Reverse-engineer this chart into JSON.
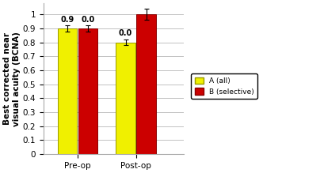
{
  "groups": [
    "Pre-op",
    "Post-op"
  ],
  "series": [
    "A (all)",
    "B (selective)"
  ],
  "values": [
    [
      0.9,
      0.9
    ],
    [
      0.8,
      1.0
    ]
  ],
  "bar_colors": [
    "#f0f000",
    "#cc0000"
  ],
  "bar_edge_colors": [
    "#999900",
    "#880000"
  ],
  "error_bars": [
    [
      0.02,
      0.02
    ],
    [
      0.02,
      0.04
    ]
  ],
  "bar_labels": [
    "0.9",
    "0.0",
    "0.0"
  ],
  "ylabel": "Best corrected near\nvisual acuity (BCNA)",
  "ylim": [
    0,
    1.08
  ],
  "yticks": [
    0,
    0.1,
    0.2,
    0.3,
    0.4,
    0.5,
    0.6,
    0.7,
    0.8,
    0.9,
    1
  ],
  "legend_labels": [
    "A (all)",
    "B (selective)"
  ],
  "legend_colors": [
    "#f0f000",
    "#cc0000"
  ],
  "legend_edge_colors": [
    "#999900",
    "#880000"
  ],
  "background_color": "#ffffff",
  "bar_width": 0.28,
  "label_fontsize": 7.5,
  "tick_fontsize": 7.5,
  "value_label_fontsize": 7
}
